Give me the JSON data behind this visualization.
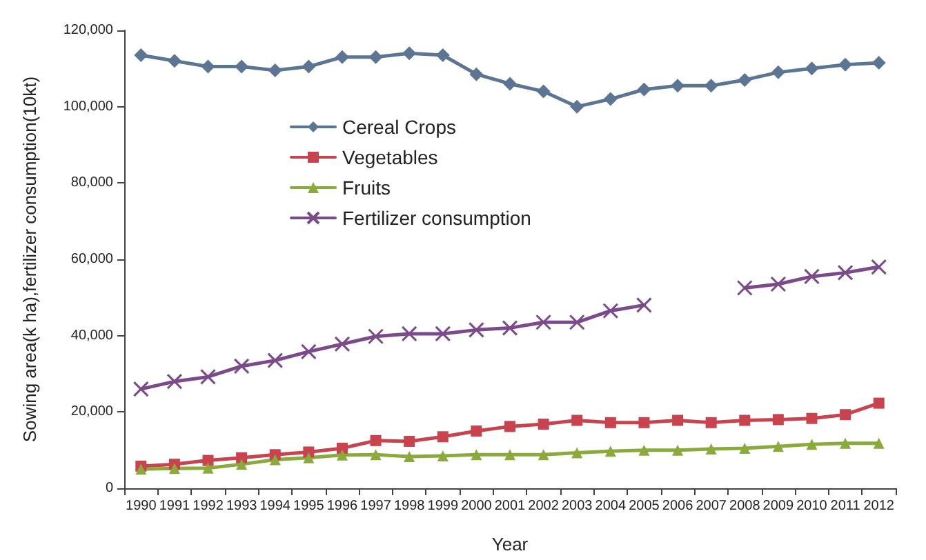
{
  "chart_data": {
    "type": "line",
    "xlabel": "Year",
    "ylabel": "Sowing area(k ha),fertilizer consumption(10kt)",
    "categories": [
      "1990",
      "1991",
      "1992",
      "1993",
      "1994",
      "1995",
      "1996",
      "1997",
      "1998",
      "1999",
      "2000",
      "2001",
      "2002",
      "2003",
      "2004",
      "2005",
      "2006",
      "2007",
      "2008",
      "2009",
      "2010",
      "2011",
      "2012"
    ],
    "ylim": [
      0,
      120000
    ],
    "yticks": [
      {
        "value": 0,
        "label": "0"
      },
      {
        "value": 20000,
        "label": "20,000"
      },
      {
        "value": 40000,
        "label": "40,000"
      },
      {
        "value": 60000,
        "label": "60,000"
      },
      {
        "value": 80000,
        "label": "80,000"
      },
      {
        "value": 100000,
        "label": "100,000"
      },
      {
        "value": 120000,
        "label": "120,000"
      }
    ],
    "grid": false,
    "legend": "top left",
    "series": [
      {
        "name": "Cereal Crops",
        "color": "#5b7593",
        "marker": "diamond",
        "values": [
          113500,
          112000,
          110500,
          110500,
          109500,
          110500,
          113000,
          113000,
          114000,
          113500,
          108500,
          106000,
          104000,
          100000,
          102000,
          104500,
          105500,
          105500,
          107000,
          109000,
          110000,
          111000,
          111500
        ]
      },
      {
        "name": "Vegetables",
        "color": "#c8434d",
        "marker": "square",
        "values": [
          5800,
          6300,
          7300,
          8000,
          8800,
          9500,
          10500,
          12500,
          12300,
          13500,
          15000,
          16200,
          16800,
          17800,
          17200,
          17200,
          17800,
          17200,
          17800,
          18000,
          18300,
          19300,
          22300
        ]
      },
      {
        "name": "Fruits",
        "color": "#8aab3c",
        "marker": "triangle",
        "values": [
          5000,
          5200,
          5300,
          6300,
          7500,
          8000,
          8700,
          8800,
          8300,
          8500,
          8800,
          8800,
          8800,
          9300,
          9700,
          10000,
          10000,
          10300,
          10500,
          11000,
          11500,
          11800,
          11800
        ]
      },
      {
        "name": "Fertilizer consumption",
        "color": "#7a4a8b",
        "marker": "cross",
        "values": [
          26000,
          28000,
          29200,
          32000,
          33500,
          35800,
          37800,
          39800,
          40500,
          40500,
          41500,
          42000,
          43500,
          43500,
          46500,
          48000,
          null,
          null,
          52500,
          53500,
          55500,
          56500,
          58000
        ]
      }
    ]
  }
}
